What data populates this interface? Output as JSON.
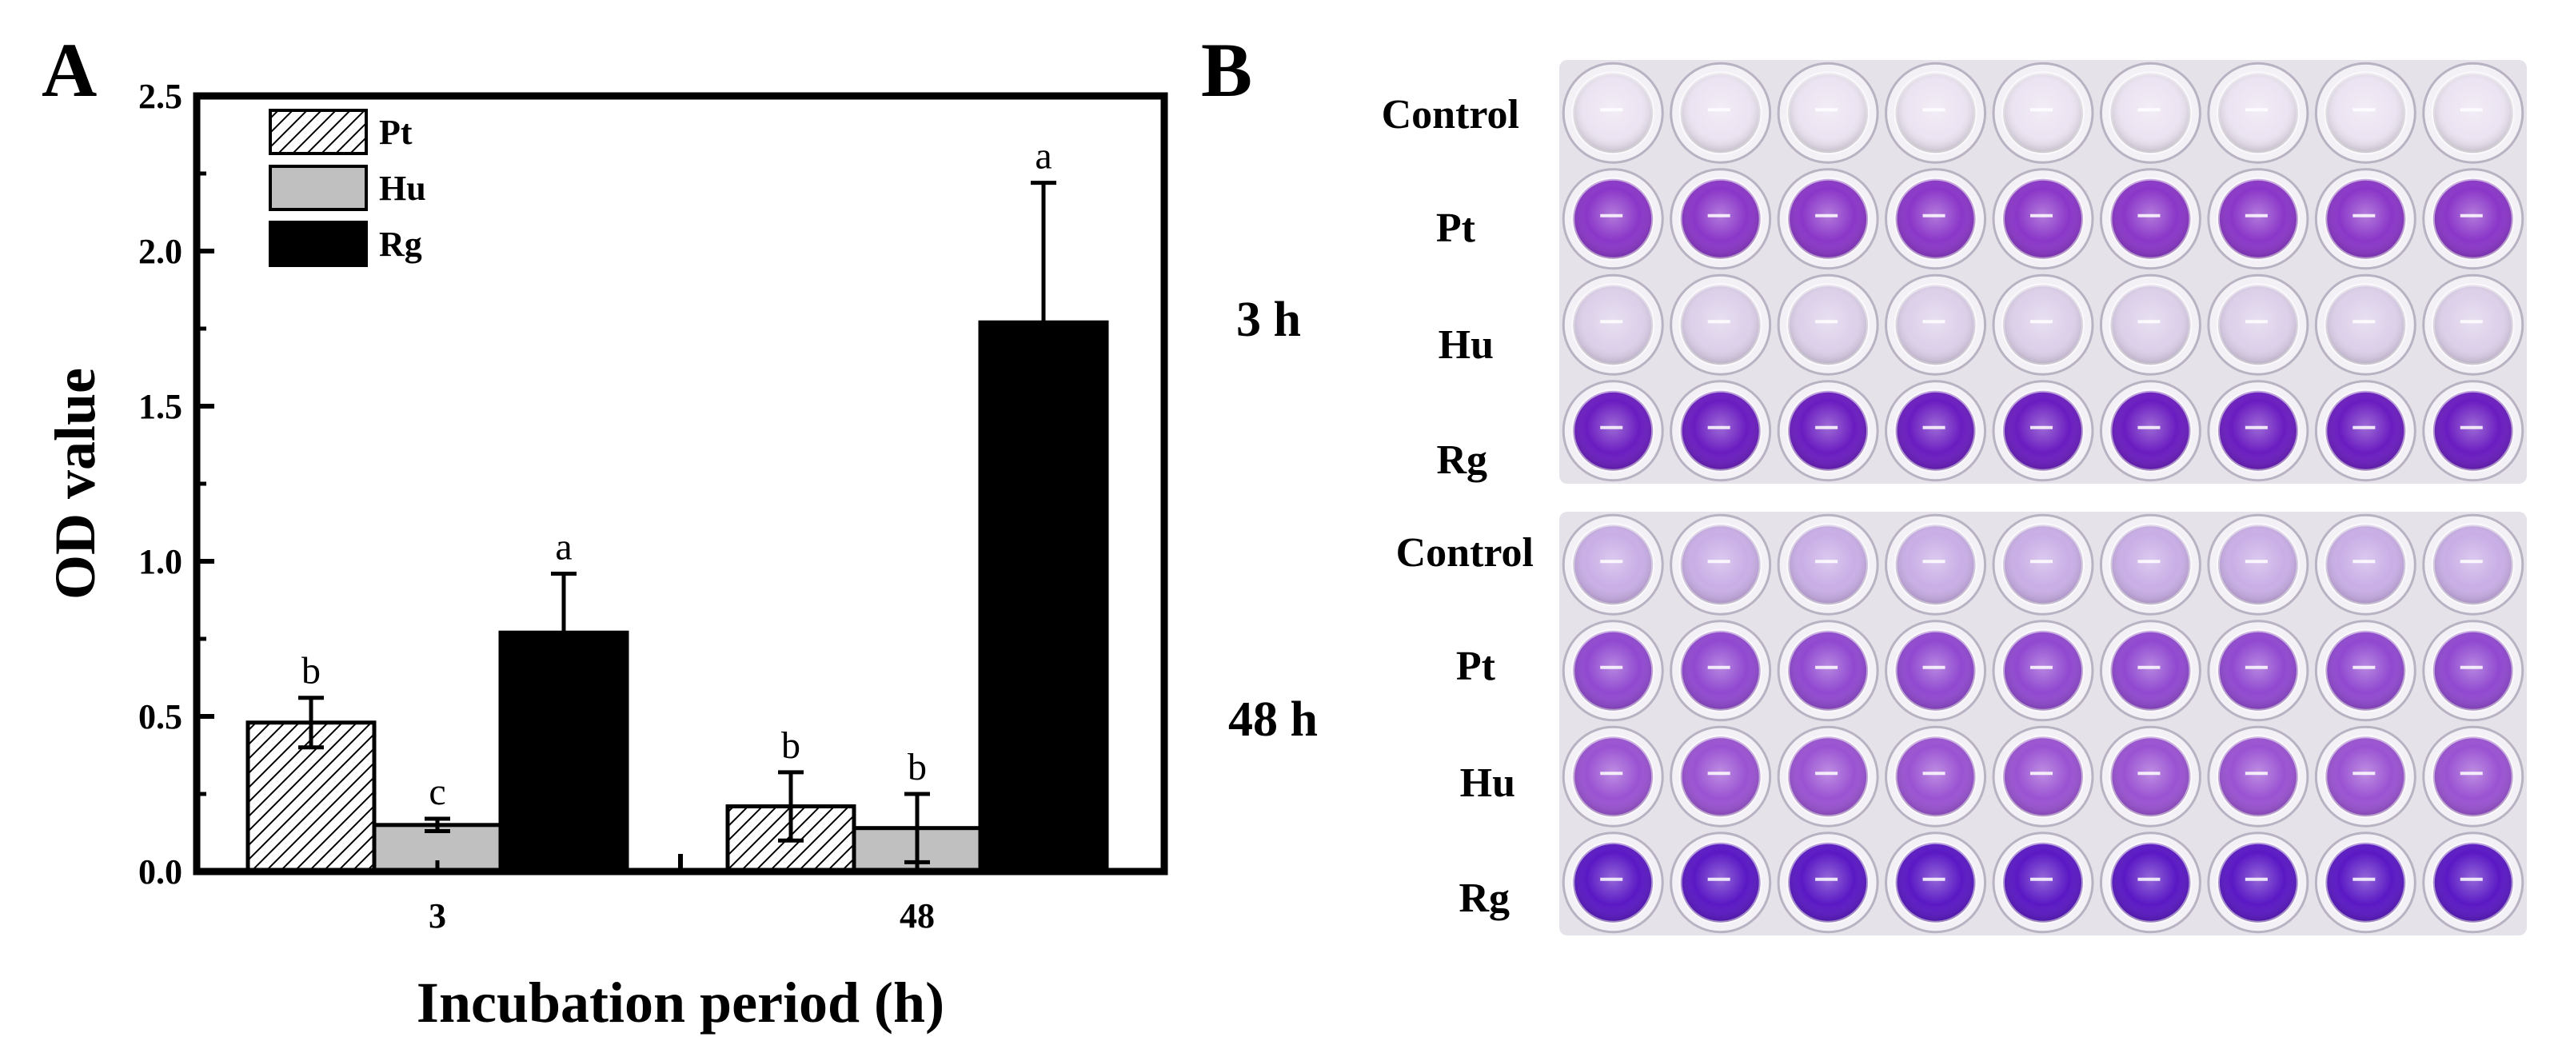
{
  "panel_a_letter": "A",
  "panel_b_letter": "B",
  "chart_data": {
    "type": "bar",
    "title": "",
    "xlabel": "Incubation period (h)",
    "ylabel": "OD value",
    "ylim": [
      0,
      2.5
    ],
    "yticks": [
      "0.0",
      "0.5",
      "1.0",
      "1.5",
      "2.0",
      "2.5"
    ],
    "categories": [
      "3",
      "48"
    ],
    "legend_position": "top-left",
    "series": [
      {
        "name": "Pt",
        "values": [
          0.48,
          0.21
        ],
        "errors": [
          0.08,
          0.11
        ],
        "letters": [
          "b",
          "b"
        ],
        "fill": "hatch"
      },
      {
        "name": "Hu",
        "values": [
          0.15,
          0.14
        ],
        "errors": [
          0.02,
          0.11
        ],
        "letters": [
          "c",
          "b"
        ],
        "fill": "#c0c0c0"
      },
      {
        "name": "Rg",
        "values": [
          0.77,
          1.77
        ],
        "errors": [
          0.19,
          0.45
        ],
        "letters": [
          "a",
          "a"
        ],
        "fill": "#000000"
      }
    ]
  },
  "photo_panel": {
    "time_labels": [
      "3 h",
      "48 h"
    ],
    "rows_3h": [
      "Control",
      "Pt",
      "Hu",
      "Rg"
    ],
    "rows_48h": [
      "Control",
      "Pt",
      "Hu",
      "Rg"
    ],
    "well_colors_3h": [
      "#ece4f2",
      "#8a36c8",
      "#ddd0ea",
      "#6a1cc0"
    ],
    "well_colors_48h": [
      "#c9aee6",
      "#9048d0",
      "#9a52d2",
      "#5a18c4"
    ],
    "plate_background": "#e6e2ea"
  }
}
